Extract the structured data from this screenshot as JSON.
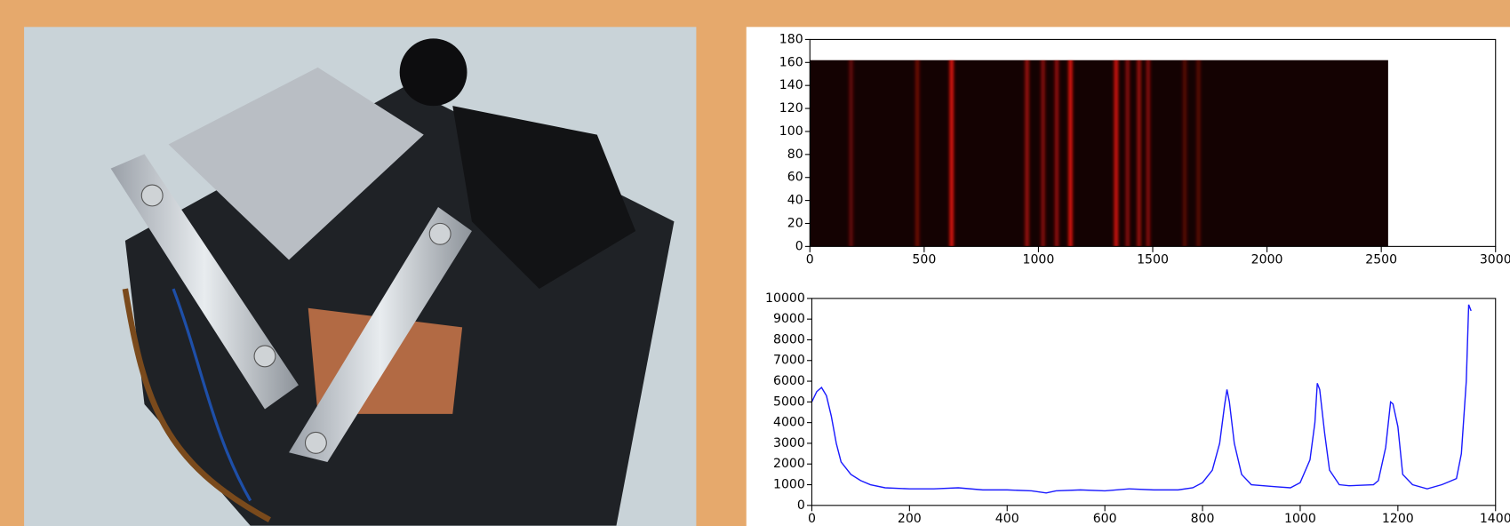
{
  "chart_data": [
    {
      "type": "heatmap",
      "xlim": [
        0,
        3000
      ],
      "xticks": [
        0,
        500,
        1000,
        1500,
        2000,
        2500,
        3000
      ],
      "ylim": [
        0,
        180
      ],
      "yticks": [
        0,
        20,
        40,
        60,
        80,
        100,
        120,
        140,
        160,
        180
      ],
      "image_x": [
        0,
        2530
      ],
      "image_y": [
        0,
        162
      ],
      "color": "#ff1a10",
      "lines": {
        "x": [
          180,
          470,
          620,
          950,
          1020,
          1080,
          1140,
          1340,
          1390,
          1440,
          1480,
          1640,
          1700
        ],
        "values": [
          0.35,
          0.4,
          0.9,
          0.6,
          0.5,
          0.55,
          0.9,
          0.85,
          0.5,
          0.6,
          0.5,
          0.3,
          0.3
        ]
      }
    },
    {
      "type": "line",
      "color": "#1a1aff",
      "xlim": [
        0,
        1400
      ],
      "xticks": [
        0,
        200,
        400,
        600,
        800,
        1000,
        1200,
        1400
      ],
      "ylim": [
        0,
        10000
      ],
      "yticks": [
        0,
        1000,
        2000,
        3000,
        4000,
        5000,
        6000,
        7000,
        8000,
        9000,
        10000
      ],
      "x": [
        0,
        10,
        20,
        30,
        40,
        50,
        60,
        80,
        100,
        120,
        150,
        200,
        250,
        300,
        350,
        400,
        450,
        480,
        500,
        550,
        600,
        650,
        700,
        750,
        780,
        800,
        820,
        835,
        845,
        850,
        855,
        865,
        880,
        900,
        950,
        980,
        1000,
        1020,
        1030,
        1035,
        1040,
        1050,
        1060,
        1080,
        1100,
        1150,
        1160,
        1175,
        1185,
        1190,
        1200,
        1210,
        1230,
        1260,
        1290,
        1300,
        1320,
        1330,
        1340,
        1345,
        1350
      ],
      "values": [
        5000,
        5500,
        5700,
        5300,
        4300,
        3000,
        2100,
        1500,
        1200,
        1000,
        850,
        800,
        800,
        850,
        750,
        750,
        700,
        600,
        700,
        750,
        700,
        800,
        750,
        750,
        850,
        1100,
        1700,
        3000,
        4800,
        5600,
        5000,
        3000,
        1500,
        1000,
        900,
        850,
        1100,
        2200,
        4000,
        5900,
        5600,
        3500,
        1700,
        1000,
        950,
        1000,
        1200,
        2800,
        5000,
        4900,
        3800,
        1500,
        1000,
        800,
        1000,
        1100,
        1300,
        2500,
        6000,
        9700,
        9400
      ]
    }
  ]
}
